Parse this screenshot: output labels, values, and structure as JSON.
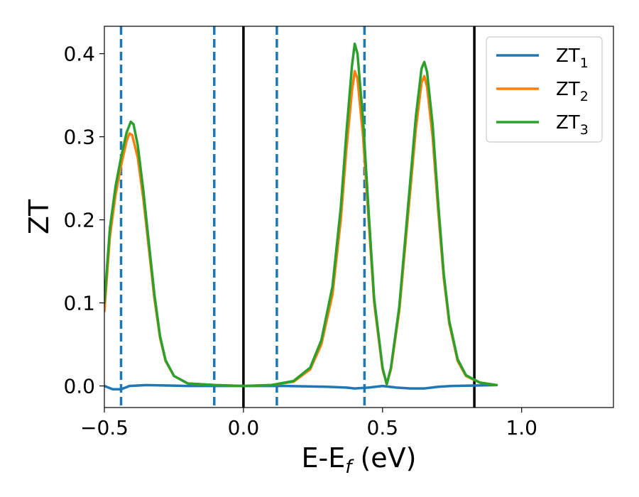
{
  "chart_data": {
    "type": "line",
    "xlabel_main": "E-E",
    "xlabel_sub": "f",
    "xlabel_tail": " (eV)",
    "ylabel": "ZT",
    "xlim": [
      -0.5,
      1.33
    ],
    "ylim": [
      -0.026,
      0.433
    ],
    "grid": false,
    "legend_position": "top-right",
    "x_ticks": [
      {
        "value": -0.5,
        "label": "−0.5"
      },
      {
        "value": 0.0,
        "label": "0.0"
      },
      {
        "value": 0.5,
        "label": "0.5"
      },
      {
        "value": 1.0,
        "label": "1.0"
      }
    ],
    "y_ticks": [
      {
        "value": 0.0,
        "label": "0.0"
      },
      {
        "value": 0.1,
        "label": "0.1"
      },
      {
        "value": 0.2,
        "label": "0.2"
      },
      {
        "value": 0.3,
        "label": "0.3"
      },
      {
        "value": 0.4,
        "label": "0.4"
      }
    ],
    "vlines": [
      {
        "x": -0.44,
        "style": "dashed",
        "color": "#1f77b4"
      },
      {
        "x": -0.105,
        "style": "dashed",
        "color": "#1f77b4"
      },
      {
        "x": 0.0,
        "style": "solid",
        "color": "#000000"
      },
      {
        "x": 0.12,
        "style": "dashed",
        "color": "#1f77b4"
      },
      {
        "x": 0.435,
        "style": "dashed",
        "color": "#1f77b4"
      },
      {
        "x": 0.83,
        "style": "solid",
        "color": "#000000"
      }
    ],
    "series": [
      {
        "name": "ZT",
        "sub": "1",
        "color": "#1f77b4",
        "points": [
          [
            -0.5,
            0.0
          ],
          [
            -0.47,
            -0.004
          ],
          [
            -0.44,
            -0.004
          ],
          [
            -0.41,
            0.0
          ],
          [
            -0.35,
            0.001
          ],
          [
            -0.2,
            0.0
          ],
          [
            0.0,
            0.0
          ],
          [
            0.15,
            0.0
          ],
          [
            0.3,
            -0.001
          ],
          [
            0.37,
            -0.002
          ],
          [
            0.4,
            -0.003
          ],
          [
            0.45,
            -0.002
          ],
          [
            0.5,
            0.0
          ],
          [
            0.55,
            -0.002
          ],
          [
            0.6,
            -0.003
          ],
          [
            0.65,
            -0.003
          ],
          [
            0.7,
            -0.001
          ],
          [
            0.75,
            0.0
          ],
          [
            0.91,
            0.001
          ]
        ]
      },
      {
        "name": "ZT",
        "sub": "2",
        "color": "#ff7f0e",
        "points": [
          [
            -0.5,
            0.09
          ],
          [
            -0.48,
            0.18
          ],
          [
            -0.46,
            0.23
          ],
          [
            -0.44,
            0.265
          ],
          [
            -0.42,
            0.295
          ],
          [
            -0.41,
            0.304
          ],
          [
            -0.4,
            0.302
          ],
          [
            -0.38,
            0.275
          ],
          [
            -0.36,
            0.225
          ],
          [
            -0.34,
            0.165
          ],
          [
            -0.32,
            0.105
          ],
          [
            -0.3,
            0.058
          ],
          [
            -0.28,
            0.03
          ],
          [
            -0.25,
            0.012
          ],
          [
            -0.2,
            0.003
          ],
          [
            -0.1,
            0.001
          ],
          [
            0.0,
            0.0
          ],
          [
            0.1,
            0.001
          ],
          [
            0.18,
            0.005
          ],
          [
            0.24,
            0.02
          ],
          [
            0.28,
            0.05
          ],
          [
            0.32,
            0.11
          ],
          [
            0.35,
            0.2
          ],
          [
            0.37,
            0.285
          ],
          [
            0.39,
            0.355
          ],
          [
            0.4,
            0.379
          ],
          [
            0.41,
            0.37
          ],
          [
            0.43,
            0.3
          ],
          [
            0.45,
            0.2
          ],
          [
            0.47,
            0.1
          ],
          [
            0.5,
            0.02
          ],
          [
            0.515,
            0.002
          ],
          [
            0.53,
            0.02
          ],
          [
            0.56,
            0.09
          ],
          [
            0.59,
            0.2
          ],
          [
            0.62,
            0.31
          ],
          [
            0.64,
            0.365
          ],
          [
            0.65,
            0.373
          ],
          [
            0.66,
            0.36
          ],
          [
            0.68,
            0.3
          ],
          [
            0.7,
            0.21
          ],
          [
            0.72,
            0.13
          ],
          [
            0.74,
            0.075
          ],
          [
            0.77,
            0.03
          ],
          [
            0.8,
            0.012
          ],
          [
            0.85,
            0.004
          ],
          [
            0.91,
            0.001
          ]
        ]
      },
      {
        "name": "ZT",
        "sub": "3",
        "color": "#2ca02c",
        "points": [
          [
            -0.5,
            0.1
          ],
          [
            -0.48,
            0.19
          ],
          [
            -0.46,
            0.24
          ],
          [
            -0.44,
            0.275
          ],
          [
            -0.42,
            0.305
          ],
          [
            -0.405,
            0.318
          ],
          [
            -0.395,
            0.315
          ],
          [
            -0.38,
            0.29
          ],
          [
            -0.36,
            0.235
          ],
          [
            -0.34,
            0.172
          ],
          [
            -0.32,
            0.11
          ],
          [
            -0.3,
            0.06
          ],
          [
            -0.28,
            0.031
          ],
          [
            -0.25,
            0.012
          ],
          [
            -0.2,
            0.003
          ],
          [
            -0.1,
            0.001
          ],
          [
            0.0,
            0.0
          ],
          [
            0.1,
            0.001
          ],
          [
            0.18,
            0.006
          ],
          [
            0.24,
            0.022
          ],
          [
            0.28,
            0.055
          ],
          [
            0.32,
            0.12
          ],
          [
            0.35,
            0.215
          ],
          [
            0.37,
            0.305
          ],
          [
            0.39,
            0.385
          ],
          [
            0.4,
            0.412
          ],
          [
            0.41,
            0.4
          ],
          [
            0.43,
            0.32
          ],
          [
            0.45,
            0.21
          ],
          [
            0.47,
            0.105
          ],
          [
            0.5,
            0.022
          ],
          [
            0.515,
            0.002
          ],
          [
            0.53,
            0.022
          ],
          [
            0.56,
            0.095
          ],
          [
            0.59,
            0.21
          ],
          [
            0.62,
            0.325
          ],
          [
            0.64,
            0.382
          ],
          [
            0.65,
            0.39
          ],
          [
            0.66,
            0.378
          ],
          [
            0.68,
            0.315
          ],
          [
            0.7,
            0.22
          ],
          [
            0.72,
            0.135
          ],
          [
            0.74,
            0.078
          ],
          [
            0.77,
            0.032
          ],
          [
            0.8,
            0.013
          ],
          [
            0.85,
            0.004
          ],
          [
            0.91,
            0.001
          ]
        ]
      }
    ]
  }
}
